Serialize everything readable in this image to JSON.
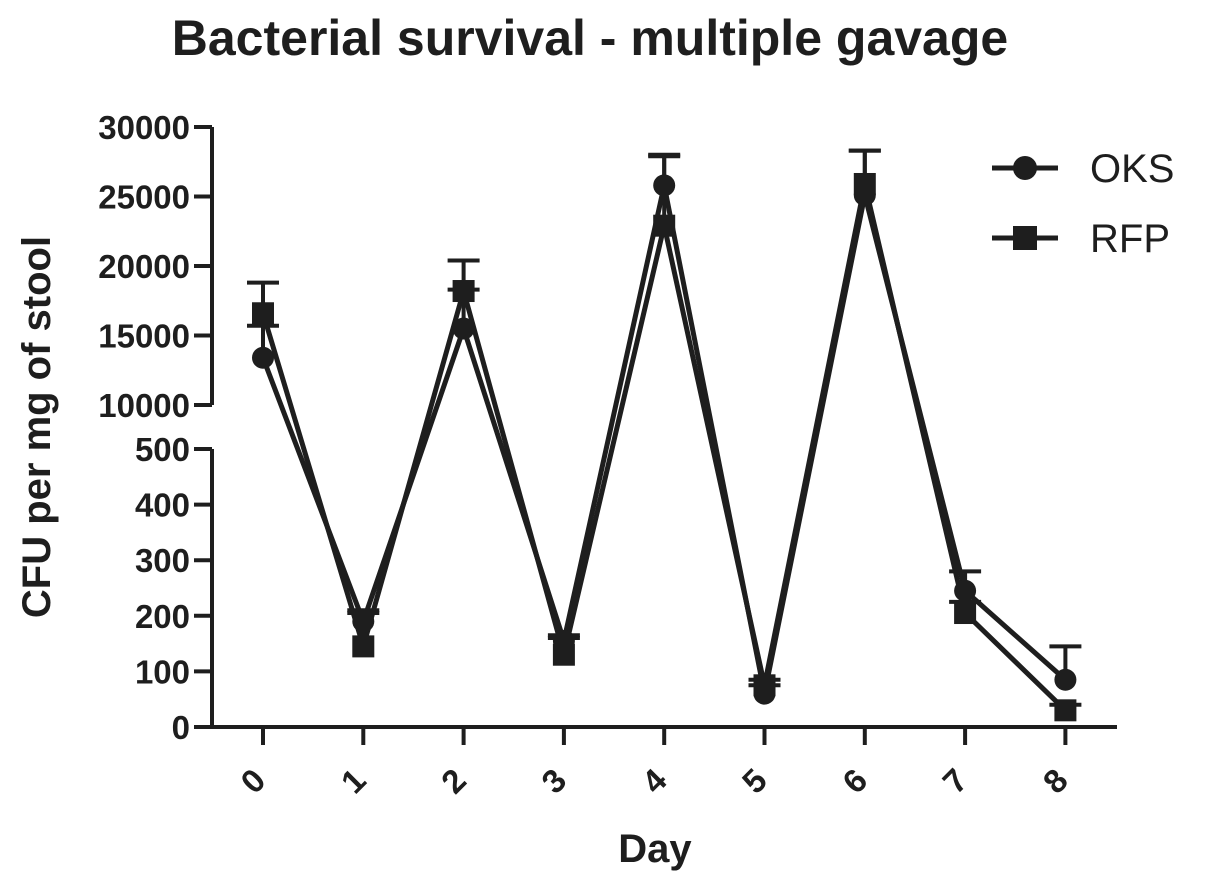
{
  "chart_data": {
    "type": "line",
    "title": "Bacterial survival - multiple gavage",
    "xlabel": "Day",
    "ylabel": "CFU per mg of stool",
    "x": [
      0,
      1,
      2,
      3,
      4,
      5,
      6,
      7,
      8
    ],
    "x_tick_labels": [
      "0",
      "1",
      "2",
      "3",
      "4",
      "5",
      "6",
      "7",
      "8"
    ],
    "y_axis_break": true,
    "y_upper_segment": {
      "ylim": [
        10000,
        30000
      ],
      "ticks": [
        10000,
        15000,
        20000,
        25000,
        30000
      ],
      "tick_labels": [
        "10000",
        "15000",
        "20000",
        "25000",
        "30000"
      ]
    },
    "y_lower_segment": {
      "ylim": [
        0,
        500
      ],
      "ticks": [
        0,
        100,
        200,
        300,
        400,
        500
      ],
      "tick_labels": [
        "0",
        "100",
        "200",
        "300",
        "400",
        "500"
      ]
    },
    "series": [
      {
        "name": "OKS",
        "marker": "circle",
        "values": [
          13400,
          190,
          15500,
          155,
          25800,
          60,
          25100,
          245,
          85
        ],
        "error_upper": [
          2300,
          20,
          2800,
          10,
          2200,
          15,
          3200,
          35,
          60
        ]
      },
      {
        "name": "RFP",
        "marker": "square",
        "values": [
          16600,
          145,
          18200,
          130,
          22900,
          75,
          25900,
          205,
          30
        ],
        "error_upper": [
          2200,
          60,
          2200,
          30,
          5000,
          10,
          2400,
          20,
          10
        ]
      }
    ],
    "legend_position": "top-right",
    "grid": false,
    "color": "#1e1e1e"
  }
}
